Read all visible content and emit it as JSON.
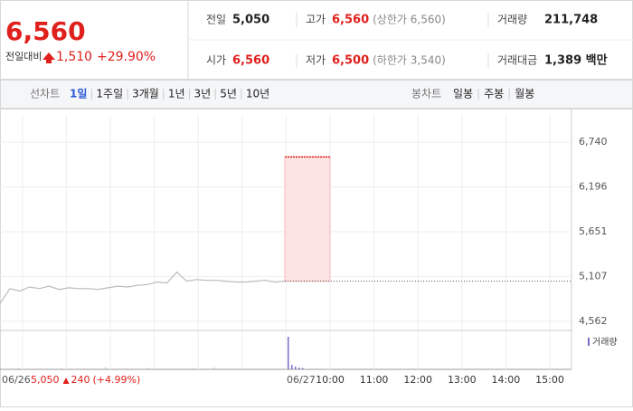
{
  "header": {
    "price": "6,560",
    "change_label": "전일대비",
    "change": "1,510",
    "change_pct": "+29.90%"
  },
  "stats": [
    {
      "label": "전일",
      "value": "5,050",
      "color": "#222222"
    },
    {
      "label": "고가",
      "value": "6,560",
      "note": "(상한가 6,560)",
      "color": "#e0201c"
    },
    {
      "label": "거래량",
      "value": "211,748",
      "color": "#222222"
    },
    {
      "label": "시가",
      "value": "6,560",
      "color": "#e0201c"
    },
    {
      "label": "저가",
      "value": "6,500",
      "note": "(하한가 3,540)",
      "color": "#e0201c"
    },
    {
      "label": "거래대금",
      "value": "1,389 백만",
      "color": "#222222"
    }
  ],
  "tabs": {
    "line_label": "선차트",
    "line_tabs": [
      "1일",
      "1주일",
      "3개월",
      "1년",
      "3년",
      "5년",
      "10년"
    ],
    "candle_label": "봉차트",
    "candle_tabs": [
      "일봉",
      "주봉",
      "월봉"
    ]
  },
  "chart_data": {
    "type": "line",
    "ylim": [
      4452,
      7070
    ],
    "yticks": [
      {
        "value": 6740,
        "label": "6,740"
      },
      {
        "value": 6196,
        "label": "6,196"
      },
      {
        "value": 5651,
        "label": "5,651"
      },
      {
        "value": 5107,
        "label": "5,107"
      },
      {
        "value": 4562,
        "label": "4,562"
      }
    ],
    "x_labels": [
      "10:00",
      "11:00",
      "12:00",
      "13:00",
      "14:00",
      "15:00"
    ],
    "dates": [
      "06/26",
      "06/27"
    ],
    "prev_close": 5050,
    "high": 6560,
    "prev_day_prices": [
      4780,
      4960,
      4930,
      4980,
      4960,
      4990,
      4950,
      4970,
      4960,
      4960,
      4950,
      4970,
      4990,
      4980,
      5000,
      5010,
      5040,
      5030,
      5160,
      5050,
      5070,
      5060,
      5060,
      5050,
      5040,
      5040,
      5050,
      5060,
      5040,
      5050
    ],
    "volume_label": "거래량",
    "volume_ylim": [
      0,
      40000
    ],
    "volume_prev": [
      1500,
      900,
      1200,
      800,
      2500,
      1000,
      1800,
      700,
      1100,
      2200,
      900,
      1300
    ],
    "volume_today": [
      36000,
      5000,
      3000,
      2000,
      1500
    ],
    "footer": {
      "date": "06/26",
      "close": "5,050",
      "change": "240",
      "pct": "(+4.99%)"
    }
  }
}
